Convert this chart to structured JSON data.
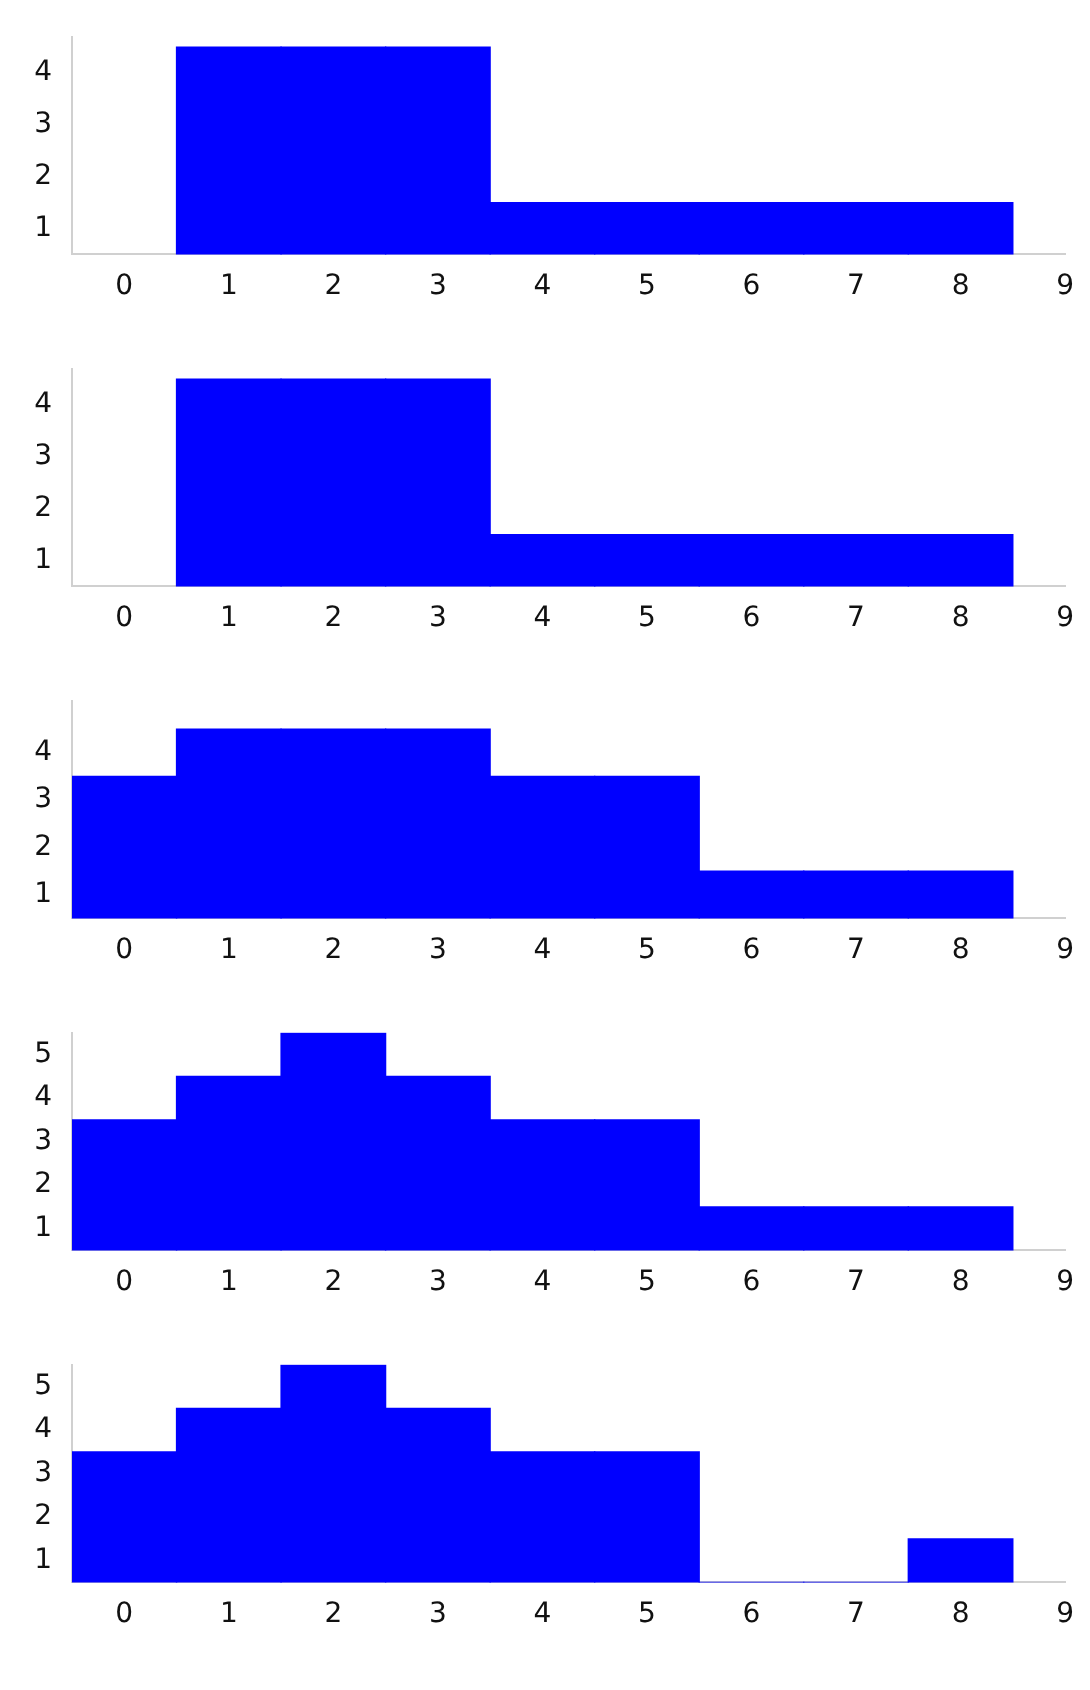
{
  "chart_data": [
    {
      "type": "histogram",
      "bins": [
        0.5,
        1.5,
        2.5,
        3.5,
        4.5,
        5.5,
        6.5,
        7.5,
        8.5
      ],
      "values": [
        4,
        4,
        4,
        1,
        1,
        1,
        1,
        1
      ],
      "color": "#0000ff",
      "xlim": [
        -0.5,
        9
      ],
      "xticks": [
        0,
        1,
        2,
        3,
        4,
        5,
        6,
        7,
        8,
        9
      ],
      "ylim": [
        0,
        4.2
      ],
      "yticks": [
        {
          "value": 0.5,
          "label": "1"
        },
        {
          "value": 1.5,
          "label": "2"
        },
        {
          "value": 2.5,
          "label": "3"
        },
        {
          "value": 3.5,
          "label": "4"
        }
      ],
      "grid": false
    },
    {
      "type": "histogram",
      "bins": [
        0.5,
        1.5,
        2.5,
        3.5,
        4.5,
        5.5,
        6.5,
        7.5,
        8.5
      ],
      "values": [
        4,
        4,
        4,
        1,
        1,
        1,
        1,
        1
      ],
      "color": "#0000ff",
      "xlim": [
        -0.5,
        9
      ],
      "xticks": [
        0,
        1,
        2,
        3,
        4,
        5,
        6,
        7,
        8,
        9
      ],
      "ylim": [
        0,
        4.2
      ],
      "yticks": [
        {
          "value": 0.5,
          "label": "1"
        },
        {
          "value": 1.5,
          "label": "2"
        },
        {
          "value": 2.5,
          "label": "3"
        },
        {
          "value": 3.5,
          "label": "4"
        }
      ],
      "grid": false
    },
    {
      "type": "histogram",
      "bins": [
        -0.5,
        0.5,
        1.5,
        2.5,
        3.5,
        4.5,
        5.5,
        6.5,
        7.5,
        8.5
      ],
      "values": [
        3,
        4,
        4,
        4,
        3,
        3,
        1,
        1,
        1
      ],
      "color": "#0000ff",
      "xlim": [
        -0.5,
        9
      ],
      "xticks": [
        0,
        1,
        2,
        3,
        4,
        5,
        6,
        7,
        8,
        9
      ],
      "ylim": [
        0,
        4.6
      ],
      "yticks": [
        {
          "value": 0.5,
          "label": "1"
        },
        {
          "value": 1.5,
          "label": "2"
        },
        {
          "value": 2.5,
          "label": "3"
        },
        {
          "value": 3.5,
          "label": "4"
        }
      ],
      "grid": false
    },
    {
      "type": "histogram",
      "bins": [
        -0.5,
        0.5,
        1.5,
        2.5,
        3.5,
        4.5,
        5.5,
        6.5,
        7.5,
        8.5
      ],
      "values": [
        3,
        4,
        5,
        4,
        3,
        3,
        1,
        1,
        1
      ],
      "color": "#0000ff",
      "xlim": [
        -0.5,
        9
      ],
      "xticks": [
        0,
        1,
        2,
        3,
        4,
        5,
        6,
        7,
        8,
        9
      ],
      "ylim": [
        0,
        5
      ],
      "yticks": [
        {
          "value": 0.5,
          "label": "1"
        },
        {
          "value": 1.5,
          "label": "2"
        },
        {
          "value": 2.5,
          "label": "3"
        },
        {
          "value": 3.5,
          "label": "4"
        },
        {
          "value": 4.5,
          "label": "5"
        }
      ],
      "grid": false
    },
    {
      "type": "histogram",
      "bins": [
        -0.5,
        0.5,
        1.5,
        2.5,
        3.5,
        4.5,
        5.5,
        6.5,
        7.5,
        8.5
      ],
      "values": [
        3,
        4,
        5,
        4,
        3,
        3,
        0,
        0,
        1
      ],
      "color": "#0000ff",
      "xlim": [
        -0.5,
        9
      ],
      "xticks": [
        0,
        1,
        2,
        3,
        4,
        5,
        6,
        7,
        8,
        9
      ],
      "ylim": [
        0,
        5
      ],
      "yticks": [
        {
          "value": 0.5,
          "label": "1"
        },
        {
          "value": 1.5,
          "label": "2"
        },
        {
          "value": 2.5,
          "label": "3"
        },
        {
          "value": 3.5,
          "label": "4"
        },
        {
          "value": 4.5,
          "label": "5"
        }
      ],
      "grid": false
    }
  ]
}
